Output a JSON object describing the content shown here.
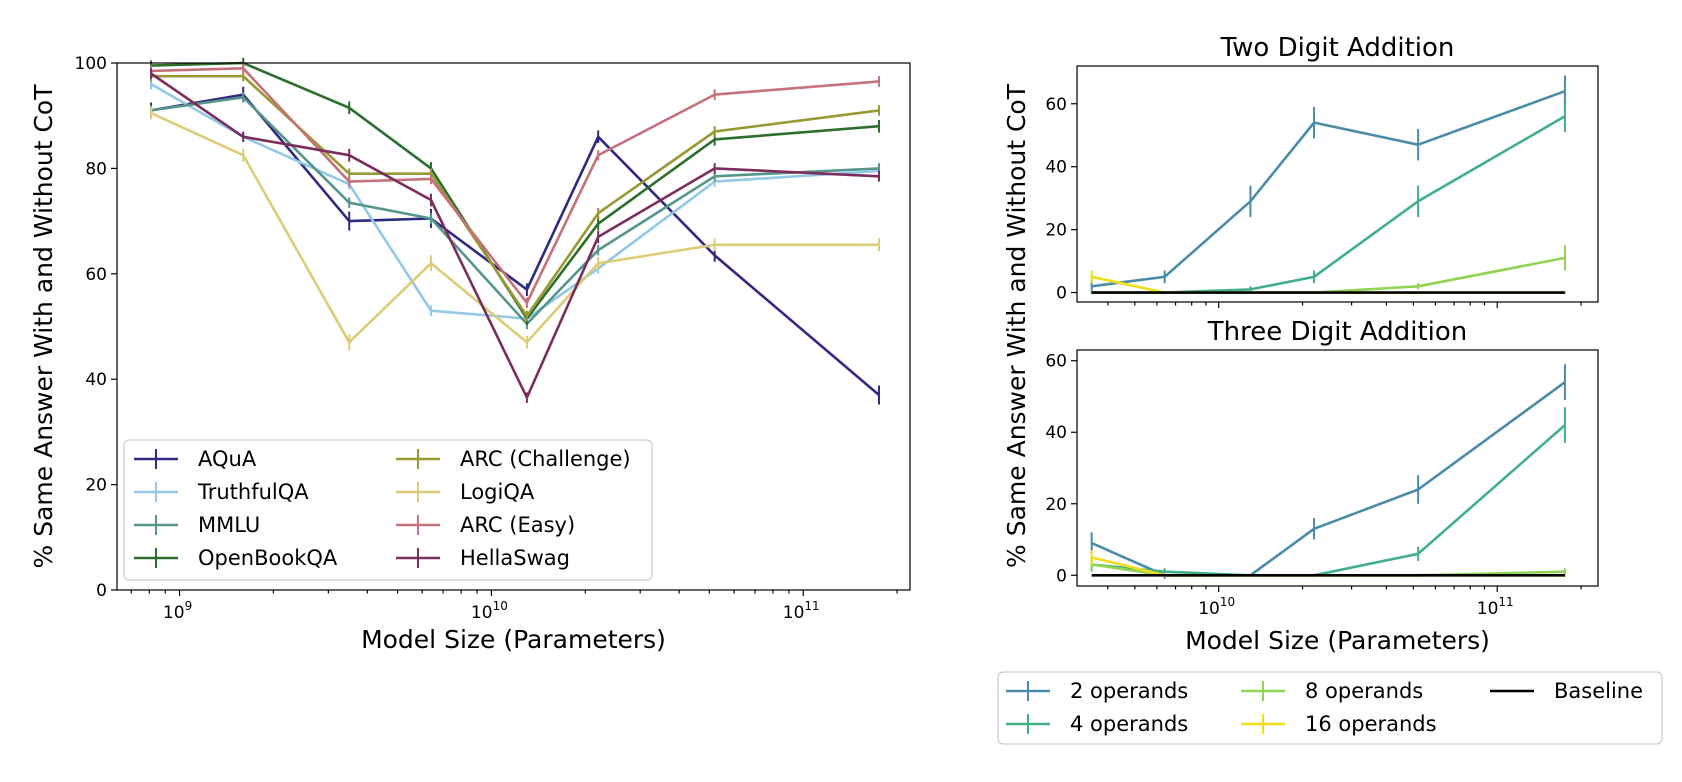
{
  "chart_data": [
    {
      "type": "line",
      "title": "",
      "xlabel": "Model Size (Parameters)",
      "ylabel": "% Same Answer With and Without CoT",
      "x_scale": "log",
      "xlim": [
        630000000.0,
        220000000000.0
      ],
      "ylim": [
        0,
        100
      ],
      "x_ticks": [
        1000000000.0,
        10000000000.0,
        100000000000.0
      ],
      "x_tick_labels": [
        [
          "10",
          "9"
        ],
        [
          "10",
          "10"
        ],
        [
          "10",
          "11"
        ]
      ],
      "y_ticks": [
        0,
        20,
        40,
        60,
        80,
        100
      ],
      "y_tick_labels": [
        "0",
        "20",
        "40",
        "60",
        "80",
        "100"
      ],
      "legend_position": "lower-left",
      "x": [
        810000000.0,
        1600000000.0,
        3500000000.0,
        6400000000.0,
        13000000000.0,
        22000000000.0,
        52000000000.0,
        175000000000.0
      ],
      "series": [
        {
          "name": "AQuA",
          "color": "#2e2a80",
          "values": [
            91,
            94,
            70,
            70.5,
            57,
            86,
            63.5,
            37
          ],
          "err": [
            1.5,
            1.5,
            1.8,
            1.8,
            1.2,
            1.2,
            1.2,
            1.8
          ]
        },
        {
          "name": "TruthfulQA",
          "color": "#93c8e8",
          "values": [
            96,
            86,
            77,
            53,
            51.5,
            61,
            77.5,
            79.5
          ],
          "err": [
            1,
            1,
            1,
            1,
            1,
            1,
            1,
            1
          ]
        },
        {
          "name": "MMLU",
          "color": "#55968a",
          "values": [
            91,
            93.5,
            73.5,
            70.5,
            50.5,
            64.5,
            78.5,
            80
          ],
          "err": [
            1,
            1,
            1,
            1,
            1,
            1,
            1,
            1
          ]
        },
        {
          "name": "OpenBookQA",
          "color": "#2c6e2c",
          "values": [
            99.5,
            100,
            91.5,
            80,
            51.5,
            69.5,
            85.5,
            88
          ],
          "err": [
            1,
            1,
            1.2,
            1.2,
            1.2,
            1.2,
            1.2,
            1.2
          ]
        },
        {
          "name": "ARC (Challenge)",
          "color": "#999933",
          "values": [
            97.5,
            97.5,
            79,
            79,
            52,
            71.5,
            87,
            91
          ],
          "err": [
            1,
            1,
            1,
            1,
            1,
            1,
            1,
            1
          ]
        },
        {
          "name": "LogiQA",
          "color": "#ddcc77",
          "values": [
            90.5,
            82.5,
            47,
            62,
            47,
            62,
            65.5,
            65.5
          ],
          "err": [
            1.2,
            1.2,
            1.5,
            1.5,
            1.2,
            1.2,
            1.2,
            1.2
          ]
        },
        {
          "name": "ARC (Easy)",
          "color": "#c5727b",
          "values": [
            98.5,
            99,
            77.5,
            78,
            54.5,
            82.5,
            94,
            96.5
          ],
          "err": [
            1,
            1,
            1,
            1,
            1,
            1,
            1,
            1
          ]
        },
        {
          "name": "HellaSwag",
          "color": "#7b2e5e",
          "values": [
            98,
            86,
            82.5,
            74,
            36.5,
            67,
            80,
            78.5
          ],
          "err": [
            1,
            1,
            1.2,
            1.2,
            1,
            1.2,
            1,
            1
          ]
        }
      ]
    },
    {
      "type": "line",
      "title": "Two Digit Addition",
      "xlabel": "",
      "ylabel": "% Same Answer With and Without CoT",
      "x_scale": "log",
      "xlim": [
        3100000000.0,
        230000000000.0
      ],
      "ylim": [
        -3,
        72
      ],
      "x_ticks": [
        10000000000.0,
        100000000000.0
      ],
      "x_tick_labels": [
        [
          "",
          ""
        ],
        [
          "",
          ""
        ]
      ],
      "y_ticks": [
        0,
        20,
        40,
        60
      ],
      "y_tick_labels": [
        "0",
        "20",
        "40",
        "60"
      ],
      "x": [
        3500000000.0,
        6400000000.0,
        13000000000.0,
        22000000000.0,
        52000000000.0,
        175000000000.0
      ],
      "series": [
        {
          "name": "2 operands",
          "color": "#4a8ca8",
          "values": [
            2,
            5,
            29,
            54,
            47,
            64
          ],
          "err": [
            2,
            2,
            5,
            5,
            5,
            5
          ]
        },
        {
          "name": "4 operands",
          "color": "#41b08a",
          "values": [
            0,
            0,
            1,
            5,
            29,
            56
          ],
          "err": [
            0.5,
            0.5,
            1,
            2,
            5,
            5
          ]
        },
        {
          "name": "8 operands",
          "color": "#8fd454",
          "values": [
            0,
            0,
            0,
            0,
            2,
            11
          ],
          "err": [
            0.5,
            0.5,
            0.5,
            0.5,
            1,
            4
          ]
        },
        {
          "name": "16 operands",
          "color": "#f2dd1c",
          "values": [
            5,
            0,
            0,
            0,
            0,
            0
          ],
          "err": [
            2,
            0.5,
            0.5,
            0.5,
            0.5,
            0.5
          ]
        },
        {
          "name": "Baseline",
          "color": "#000000",
          "values": [
            0,
            0,
            0,
            0,
            0,
            0
          ],
          "err": [
            0,
            0,
            0,
            0,
            0,
            0
          ]
        }
      ]
    },
    {
      "type": "line",
      "title": "Three Digit Addition",
      "xlabel": "Model Size (Parameters)",
      "ylabel": "",
      "x_scale": "log",
      "xlim": [
        3100000000.0,
        230000000000.0
      ],
      "ylim": [
        -3,
        63
      ],
      "x_ticks": [
        10000000000.0,
        100000000000.0
      ],
      "x_tick_labels": [
        [
          "10",
          "10"
        ],
        [
          "10",
          "11"
        ]
      ],
      "y_ticks": [
        0,
        20,
        40,
        60
      ],
      "y_tick_labels": [
        "0",
        "20",
        "40",
        "60"
      ],
      "x": [
        3500000000.0,
        6400000000.0,
        13000000000.0,
        22000000000.0,
        52000000000.0,
        175000000000.0
      ],
      "series": [
        {
          "name": "2 operands",
          "color": "#4a8ca8",
          "values": [
            9,
            0,
            0,
            13,
            24,
            54
          ],
          "err": [
            3,
            1,
            0.5,
            3,
            4,
            5
          ]
        },
        {
          "name": "4 operands",
          "color": "#41b08a",
          "values": [
            3,
            1,
            0,
            0,
            6,
            42
          ],
          "err": [
            2,
            1,
            0.5,
            0.5,
            2,
            5
          ]
        },
        {
          "name": "8 operands",
          "color": "#8fd454",
          "values": [
            3,
            0,
            0,
            0,
            0,
            1
          ],
          "err": [
            2,
            0.5,
            0.5,
            0.5,
            0.5,
            1
          ]
        },
        {
          "name": "16 operands",
          "color": "#f2dd1c",
          "values": [
            5,
            0,
            0,
            0,
            0,
            0
          ],
          "err": [
            2,
            0.5,
            0.5,
            0.5,
            0.5,
            0.5
          ]
        },
        {
          "name": "Baseline",
          "color": "#000000",
          "values": [
            0,
            0,
            0,
            0,
            0,
            0
          ],
          "err": [
            0,
            0,
            0,
            0,
            0,
            0
          ]
        }
      ]
    }
  ],
  "legends": {
    "left": {
      "columns": 2,
      "items": [
        "AQuA",
        "TruthfulQA",
        "MMLU",
        "OpenBookQA",
        "ARC (Challenge)",
        "LogiQA",
        "ARC (Easy)",
        "HellaSwag"
      ],
      "colors": [
        "#2e2a80",
        "#93c8e8",
        "#55968a",
        "#2c6e2c",
        "#999933",
        "#ddcc77",
        "#c5727b",
        "#7b2e5e"
      ]
    },
    "right": {
      "columns": 3,
      "items": [
        "2 operands",
        "4 operands",
        "8 operands",
        "16 operands",
        "Baseline"
      ],
      "colors": [
        "#4a8ca8",
        "#41b08a",
        "#8fd454",
        "#f2dd1c",
        "#000000"
      ],
      "errorbar_marker": [
        true,
        true,
        true,
        true,
        false
      ]
    }
  },
  "shared_labels": {
    "right_ylabel": "% Same Answer With and Without CoT"
  }
}
